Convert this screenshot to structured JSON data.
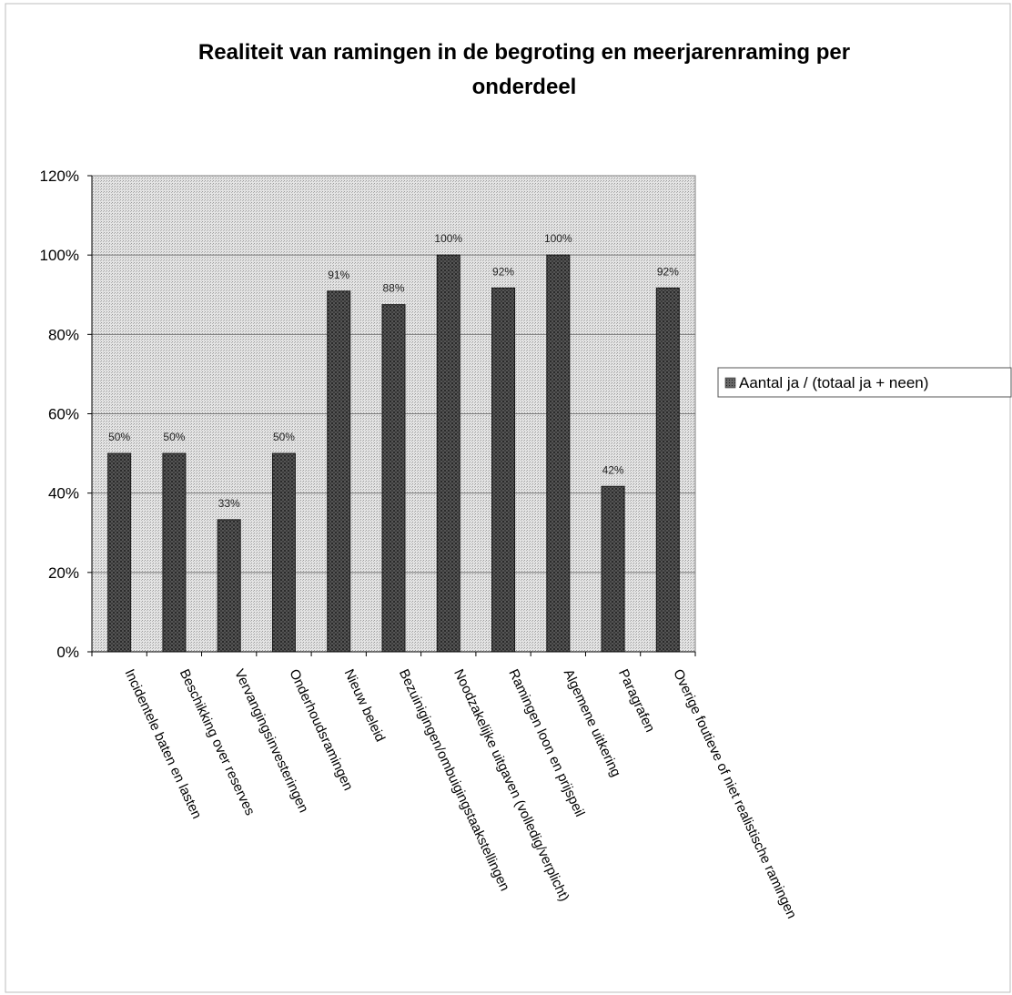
{
  "chart_data": {
    "type": "bar",
    "title_lines": [
      "Realiteit van ramingen in de begroting en meerjarenraming per",
      "onderdeel"
    ],
    "categories": [
      "Incidentele baten en lasten",
      "Beschikking over reserves",
      "Vervangingsinvesteringen",
      "Onderhoudsramingen",
      "Nieuw beleid",
      "Bezuinigingen/ombuigingstaakstellingen",
      "Noodzakelijke uitgaven (volledig/verplicht)",
      "Ramingen loon en prijspeil",
      "Algemene uitkering",
      "Paragrafen",
      "Overige foutieve of niet realistische ramingen"
    ],
    "series": [
      {
        "name": "Aantal ja / (totaal ja + neen)",
        "values": [
          0.5,
          0.5,
          0.333,
          0.5,
          0.909,
          0.875,
          1.0,
          0.917,
          1.0,
          0.417,
          0.917
        ],
        "labels": [
          "50%",
          "50%",
          "33%",
          "50%",
          "91%",
          "88%",
          "100%",
          "92%",
          "100%",
          "42%",
          "92%"
        ]
      }
    ],
    "ylim": [
      0,
      1.2
    ],
    "yticks": [
      0,
      0.2,
      0.4,
      0.6,
      0.8,
      1.0,
      1.2
    ],
    "ytick_labels": [
      "0%",
      "20%",
      "40%",
      "60%",
      "80%",
      "100%",
      "120%"
    ],
    "grid": true,
    "legend_position": "right",
    "colors": {
      "bar_fill": "#4a4a4a",
      "plot_bg": "#d9d9d9",
      "gridline": "#7a7a7a"
    }
  }
}
